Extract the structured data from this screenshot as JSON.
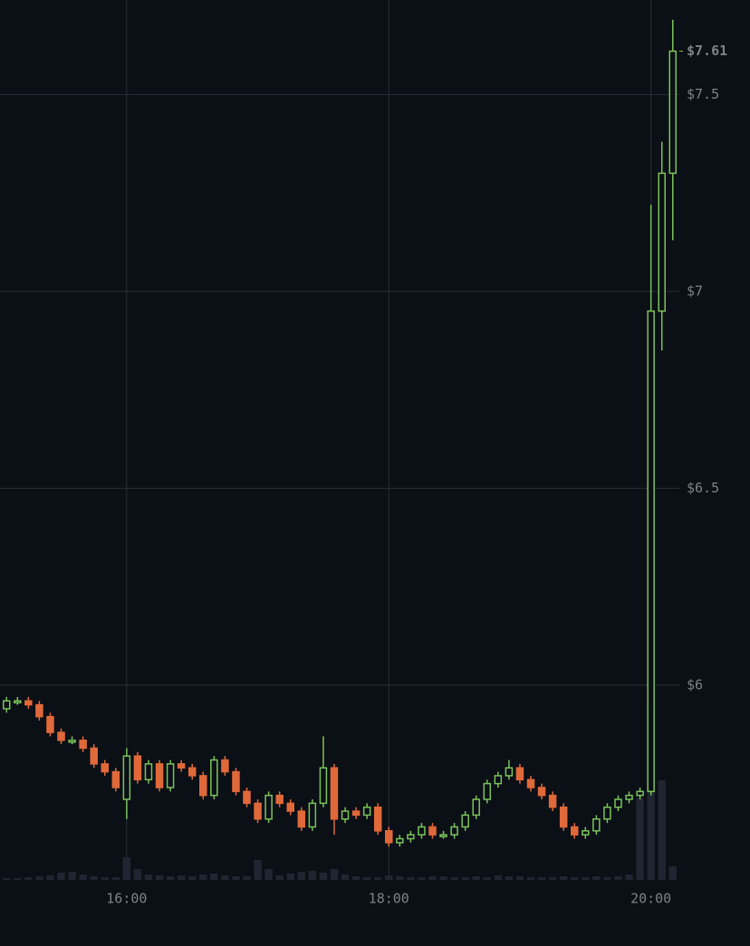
{
  "chart_data": {
    "type": "candlestick",
    "x": [
      "15:05",
      "15:10",
      "15:15",
      "15:20",
      "15:25",
      "15:30",
      "15:35",
      "15:40",
      "15:45",
      "15:50",
      "15:55",
      "16:00",
      "16:05",
      "16:10",
      "16:15",
      "16:20",
      "16:25",
      "16:30",
      "16:35",
      "16:40",
      "16:45",
      "16:50",
      "16:55",
      "17:00",
      "17:05",
      "17:10",
      "17:15",
      "17:20",
      "17:25",
      "17:30",
      "17:35",
      "17:40",
      "17:45",
      "17:50",
      "17:55",
      "18:00",
      "18:05",
      "18:10",
      "18:15",
      "18:20",
      "18:25",
      "18:30",
      "18:35",
      "18:40",
      "18:45",
      "18:50",
      "18:55",
      "19:00",
      "19:05",
      "19:10",
      "19:15",
      "19:20",
      "19:25",
      "19:30",
      "19:35",
      "19:40",
      "19:45",
      "19:50",
      "19:55",
      "20:00",
      "20:05",
      "20:10"
    ],
    "open": [
      5.94,
      5.96,
      5.96,
      5.95,
      5.92,
      5.88,
      5.86,
      5.86,
      5.84,
      5.8,
      5.78,
      5.71,
      5.82,
      5.76,
      5.8,
      5.74,
      5.8,
      5.79,
      5.77,
      5.72,
      5.81,
      5.78,
      5.73,
      5.7,
      5.66,
      5.72,
      5.7,
      5.68,
      5.64,
      5.7,
      5.79,
      5.66,
      5.68,
      5.67,
      5.69,
      5.63,
      5.6,
      5.61,
      5.62,
      5.64,
      5.62,
      5.62,
      5.64,
      5.67,
      5.71,
      5.75,
      5.77,
      5.79,
      5.76,
      5.74,
      5.72,
      5.69,
      5.64,
      5.62,
      5.63,
      5.66,
      5.69,
      5.71,
      5.72,
      5.73,
      6.95,
      7.3
    ],
    "high": [
      5.97,
      5.97,
      5.97,
      5.96,
      5.93,
      5.89,
      5.87,
      5.87,
      5.85,
      5.81,
      5.79,
      5.84,
      5.83,
      5.81,
      5.81,
      5.81,
      5.81,
      5.8,
      5.78,
      5.82,
      5.82,
      5.79,
      5.74,
      5.71,
      5.73,
      5.73,
      5.71,
      5.69,
      5.71,
      5.87,
      5.8,
      5.69,
      5.69,
      5.7,
      5.7,
      5.64,
      5.62,
      5.63,
      5.65,
      5.65,
      5.63,
      5.65,
      5.68,
      5.72,
      5.76,
      5.78,
      5.81,
      5.8,
      5.77,
      5.75,
      5.73,
      5.7,
      5.65,
      5.64,
      5.67,
      5.7,
      5.72,
      5.73,
      5.74,
      7.22,
      7.38,
      7.69
    ],
    "low": [
      5.93,
      5.95,
      5.94,
      5.91,
      5.87,
      5.85,
      5.85,
      5.83,
      5.79,
      5.77,
      5.73,
      5.66,
      5.75,
      5.75,
      5.73,
      5.73,
      5.78,
      5.76,
      5.71,
      5.71,
      5.77,
      5.72,
      5.69,
      5.65,
      5.65,
      5.69,
      5.67,
      5.63,
      5.63,
      5.69,
      5.62,
      5.65,
      5.66,
      5.66,
      5.62,
      5.59,
      5.59,
      5.6,
      5.61,
      5.61,
      5.61,
      5.61,
      5.63,
      5.66,
      5.7,
      5.74,
      5.76,
      5.75,
      5.73,
      5.71,
      5.68,
      5.63,
      5.61,
      5.61,
      5.62,
      5.65,
      5.68,
      5.7,
      5.71,
      5.72,
      6.85,
      7.13
    ],
    "close": [
      5.96,
      5.96,
      5.95,
      5.92,
      5.88,
      5.86,
      5.86,
      5.84,
      5.8,
      5.78,
      5.74,
      5.82,
      5.76,
      5.8,
      5.74,
      5.8,
      5.79,
      5.77,
      5.72,
      5.81,
      5.78,
      5.73,
      5.7,
      5.66,
      5.72,
      5.7,
      5.68,
      5.64,
      5.7,
      5.79,
      5.66,
      5.68,
      5.67,
      5.69,
      5.63,
      5.6,
      5.61,
      5.62,
      5.64,
      5.62,
      5.62,
      5.64,
      5.67,
      5.71,
      5.75,
      5.77,
      5.79,
      5.76,
      5.74,
      5.72,
      5.69,
      5.64,
      5.62,
      5.63,
      5.66,
      5.69,
      5.71,
      5.72,
      5.73,
      6.95,
      7.3,
      7.61
    ],
    "volume": [
      2,
      2,
      3,
      4,
      5,
      8,
      9,
      6,
      4,
      3,
      3,
      25,
      12,
      6,
      5,
      4,
      5,
      4,
      6,
      7,
      5,
      4,
      4,
      22,
      12,
      5,
      7,
      9,
      10,
      8,
      12,
      6,
      4,
      3,
      3,
      5,
      4,
      3,
      3,
      4,
      4,
      3,
      3,
      4,
      3,
      5,
      4,
      4,
      3,
      3,
      3,
      4,
      3,
      3,
      4,
      3,
      4,
      6,
      90,
      190,
      110,
      15
    ],
    "up_color": "#7bc35a",
    "down_color": "#e0693a",
    "volume_color": "#1f2631",
    "xlim": [
      "15:02",
      "20:13"
    ],
    "xticks": [
      "16:00",
      "18:00",
      "20:00"
    ],
    "ylim": [
      5.51,
      7.74
    ],
    "yticks": [
      {
        "value": 6,
        "label": "$6"
      },
      {
        "value": 6.5,
        "label": "$6.5"
      },
      {
        "value": 7,
        "label": "$7"
      },
      {
        "value": 7.5,
        "label": "$7.5"
      }
    ],
    "last_price": {
      "value": 7.61,
      "label": "$7.61"
    },
    "grid": true
  }
}
